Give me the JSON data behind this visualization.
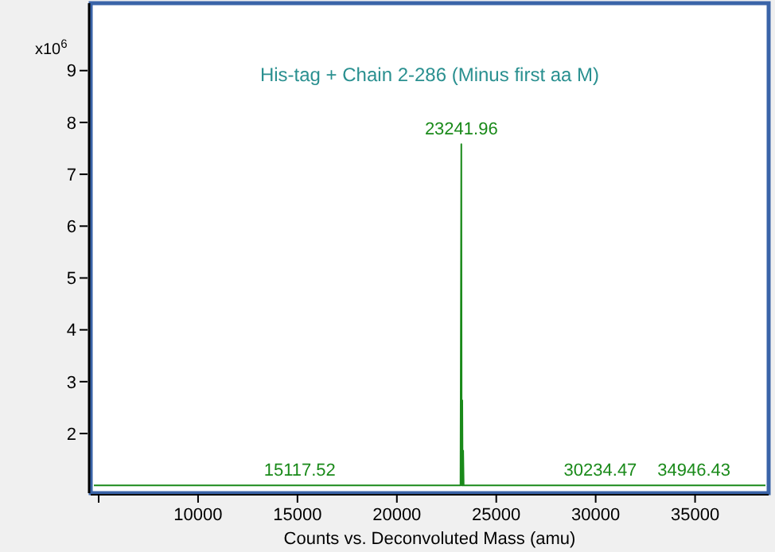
{
  "chart_data": {
    "type": "line",
    "title": "His-tag + Chain 2-286 (Minus first aa M)",
    "xlabel": "Counts vs. Deconvoluted Mass (amu)",
    "ylabel": "x10$^{6}$",
    "x": [
      4600,
      15117.52,
      23150,
      23200,
      23241.96,
      23260,
      23290,
      23310,
      23335,
      23360,
      30234.47,
      34946.43,
      38700
    ],
    "series": [
      {
        "color": "#1a8a1a",
        "values": [
          1.0,
          1.0,
          1.0,
          1.0,
          7.58,
          1.0,
          2.64,
          1.0,
          1.67,
          1.0,
          1.0,
          1.0,
          1.0
        ]
      }
    ],
    "xlim": [
      4600,
      38700
    ],
    "ylim": [
      0.85,
      10.3
    ],
    "xticks": [
      {
        "value": 5000,
        "label": null
      },
      10000,
      15000,
      20000,
      25000,
      30000,
      35000
    ],
    "yticks": [
      2,
      3,
      4,
      5,
      6,
      7,
      8,
      9
    ],
    "grid": false,
    "marker": "none",
    "line_style": "solid",
    "annotations": [
      {
        "text": "23241.96",
        "x": 23241.96,
        "y": 7.58
      },
      {
        "text": "15117.52",
        "x": 15117.52,
        "y": 1.0
      },
      {
        "text": "30234.47",
        "x": 30234.47,
        "y": 1.0
      },
      {
        "text": "34946.43",
        "x": 34946.43,
        "y": 1.0
      }
    ]
  }
}
